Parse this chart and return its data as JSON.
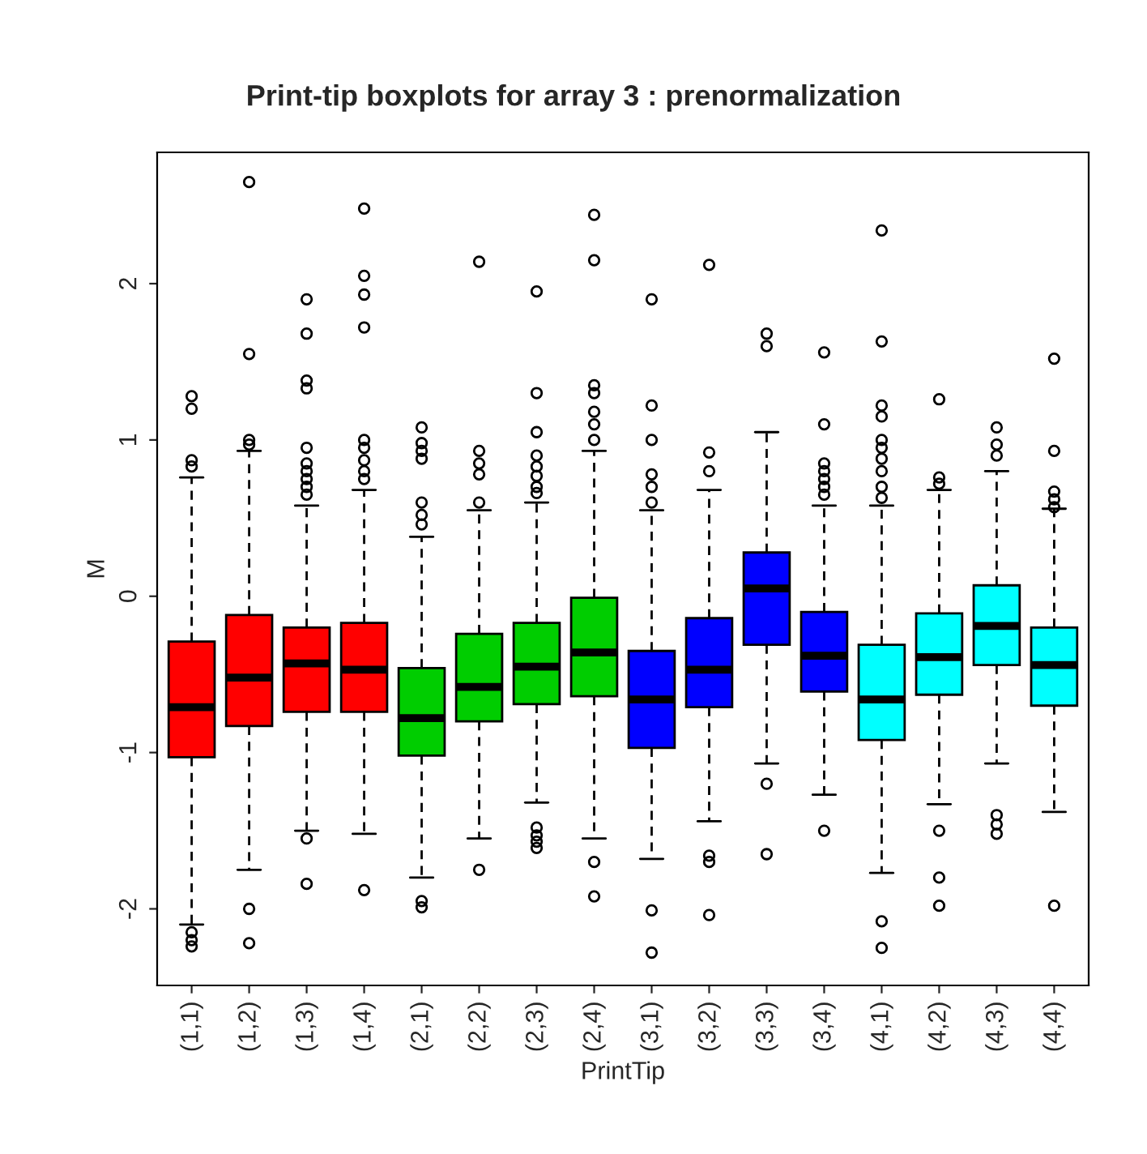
{
  "chart_data": {
    "type": "box",
    "title": "Print-tip boxplots for array 3 : prenormalization",
    "xlabel": "PrintTip",
    "ylabel": "M",
    "categories": [
      "(1,1)",
      "(1,2)",
      "(1,3)",
      "(1,4)",
      "(2,1)",
      "(2,2)",
      "(2,3)",
      "(2,4)",
      "(3,1)",
      "(3,2)",
      "(3,3)",
      "(3,4)",
      "(4,1)",
      "(4,2)",
      "(4,3)",
      "(4,4)"
    ],
    "colors": [
      "#ff0000",
      "#ff0000",
      "#ff0000",
      "#ff0000",
      "#00cd00",
      "#00cd00",
      "#00cd00",
      "#00cd00",
      "#0000ff",
      "#0000ff",
      "#0000ff",
      "#0000ff",
      "#00ffff",
      "#00ffff",
      "#00ffff",
      "#00ffff"
    ],
    "boxes": [
      {
        "low": -2.1,
        "q1": -1.03,
        "median": -0.71,
        "q3": -0.29,
        "high": 0.76,
        "outliers": [
          1.28,
          1.2,
          0.87,
          0.83,
          -2.15,
          -2.2,
          -2.24
        ]
      },
      {
        "low": -1.75,
        "q1": -0.83,
        "median": -0.52,
        "q3": -0.12,
        "high": 0.93,
        "outliers": [
          2.65,
          1.55,
          1.0,
          0.97,
          -2.0,
          -2.22
        ]
      },
      {
        "low": -1.5,
        "q1": -0.74,
        "median": -0.43,
        "q3": -0.2,
        "high": 0.58,
        "outliers": [
          1.9,
          1.68,
          1.38,
          1.33,
          0.95,
          0.85,
          0.8,
          0.75,
          0.7,
          0.65,
          -1.55,
          -1.84
        ]
      },
      {
        "low": -1.52,
        "q1": -0.74,
        "median": -0.47,
        "q3": -0.17,
        "high": 0.68,
        "outliers": [
          2.48,
          2.05,
          1.93,
          1.72,
          1.0,
          0.95,
          0.87,
          0.8,
          0.75,
          -1.88
        ]
      },
      {
        "low": -1.8,
        "q1": -1.02,
        "median": -0.78,
        "q3": -0.46,
        "high": 0.38,
        "outliers": [
          1.08,
          0.98,
          0.93,
          0.88,
          0.6,
          0.52,
          0.46,
          -1.95,
          -1.99
        ]
      },
      {
        "low": -1.55,
        "q1": -0.8,
        "median": -0.58,
        "q3": -0.24,
        "high": 0.55,
        "outliers": [
          2.14,
          0.93,
          0.85,
          0.78,
          0.6,
          -1.75
        ]
      },
      {
        "low": -1.32,
        "q1": -0.69,
        "median": -0.45,
        "q3": -0.17,
        "high": 0.6,
        "outliers": [
          1.95,
          1.3,
          1.05,
          0.9,
          0.83,
          0.77,
          0.7,
          0.66,
          -1.48,
          -1.53,
          -1.57,
          -1.61
        ]
      },
      {
        "low": -1.55,
        "q1": -0.64,
        "median": -0.36,
        "q3": -0.01,
        "high": 0.93,
        "outliers": [
          2.44,
          2.15,
          1.35,
          1.3,
          1.18,
          1.1,
          1.0,
          -1.7,
          -1.92
        ]
      },
      {
        "low": -1.68,
        "q1": -0.97,
        "median": -0.66,
        "q3": -0.35,
        "high": 0.55,
        "outliers": [
          1.9,
          1.22,
          1.0,
          0.78,
          0.7,
          0.6,
          -2.01,
          -2.28
        ]
      },
      {
        "low": -1.44,
        "q1": -0.71,
        "median": -0.47,
        "q3": -0.14,
        "high": 0.68,
        "outliers": [
          2.12,
          0.92,
          0.8,
          -1.66,
          -1.7,
          -2.04
        ]
      },
      {
        "low": -1.07,
        "q1": -0.31,
        "median": 0.05,
        "q3": 0.28,
        "high": 1.05,
        "outliers": [
          1.68,
          1.6,
          -1.2,
          -1.65
        ]
      },
      {
        "low": -1.27,
        "q1": -0.61,
        "median": -0.38,
        "q3": -0.1,
        "high": 0.58,
        "outliers": [
          1.56,
          1.1,
          0.85,
          0.8,
          0.75,
          0.7,
          0.65,
          -1.5
        ]
      },
      {
        "low": -1.77,
        "q1": -0.92,
        "median": -0.66,
        "q3": -0.31,
        "high": 0.58,
        "outliers": [
          2.34,
          1.63,
          1.22,
          1.15,
          1.0,
          0.95,
          0.88,
          0.8,
          0.7,
          0.63,
          -2.08,
          -2.25
        ]
      },
      {
        "low": -1.33,
        "q1": -0.63,
        "median": -0.39,
        "q3": -0.11,
        "high": 0.68,
        "outliers": [
          1.26,
          0.76,
          0.72,
          -1.5,
          -1.8,
          -1.98
        ]
      },
      {
        "low": -1.07,
        "q1": -0.44,
        "median": -0.19,
        "q3": 0.07,
        "high": 0.8,
        "outliers": [
          1.08,
          0.97,
          0.9,
          -1.4,
          -1.46,
          -1.52
        ]
      },
      {
        "low": -1.38,
        "q1": -0.7,
        "median": -0.44,
        "q3": -0.2,
        "high": 0.56,
        "outliers": [
          1.52,
          0.93,
          0.67,
          0.62,
          0.57,
          -1.98
        ]
      }
    ],
    "ylim": [
      -2.49,
      2.84
    ],
    "yticks": [
      -2,
      -1,
      0,
      1,
      2
    ],
    "grid": false
  }
}
